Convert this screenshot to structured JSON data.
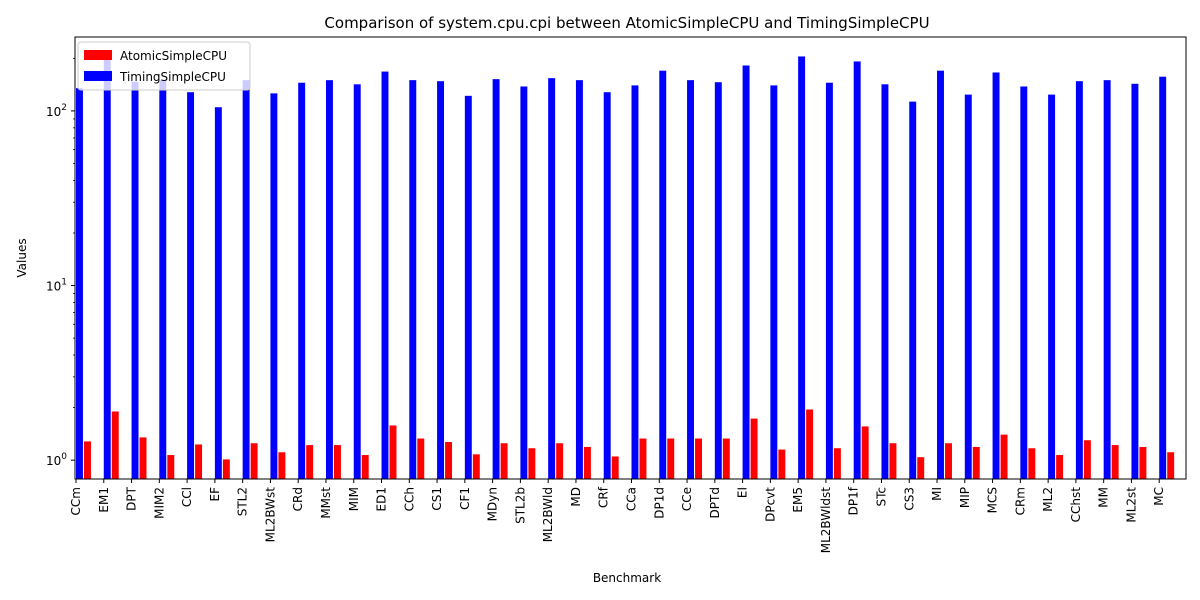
{
  "chart_data": {
    "type": "bar",
    "title": "Comparison of system.cpu.cpi between AtomicSimpleCPU and TimingSimpleCPU",
    "xlabel": "Benchmark",
    "ylabel": "Values",
    "yscale": "log",
    "ylim": [
      0.78,
      265
    ],
    "yticks": [
      {
        "value": 1,
        "base": "10",
        "exp": "0"
      },
      {
        "value": 10,
        "base": "10",
        "exp": "1"
      },
      {
        "value": 100,
        "base": "10",
        "exp": "2"
      }
    ],
    "legend_position": "top-left",
    "grid": false,
    "categories": [
      "CCm",
      "EM1",
      "DPT",
      "MIM2",
      "CCl",
      "EF",
      "STL2",
      "ML2BWst",
      "CRd",
      "MMst",
      "MIM",
      "ED1",
      "CCh",
      "CS1",
      "CF1",
      "MDyn",
      "STL2b",
      "ML2BWld",
      "MD",
      "CRf",
      "CCa",
      "DP1d",
      "CCe",
      "DPTd",
      "EI",
      "DPcvt",
      "EM5",
      "ML2BWldst",
      "DP1f",
      "STc",
      "CS3",
      "MI",
      "MIP",
      "MCS",
      "CRm",
      "ML2",
      "CChst",
      "MM",
      "ML2st",
      "MC"
    ],
    "series": [
      {
        "name": "AtomicSimpleCPU",
        "color": "#ff0000",
        "values": [
          1.28,
          1.9,
          1.35,
          1.07,
          1.23,
          1.01,
          1.25,
          1.11,
          1.22,
          1.22,
          1.07,
          1.58,
          1.33,
          1.27,
          1.08,
          1.25,
          1.17,
          1.25,
          1.19,
          1.05,
          1.33,
          1.33,
          1.33,
          1.33,
          1.73,
          1.15,
          1.95,
          1.17,
          1.56,
          1.25,
          1.04,
          1.25,
          1.19,
          1.4,
          1.17,
          1.07,
          1.3,
          1.22,
          1.19,
          1.11
        ]
      },
      {
        "name": "TimingSimpleCPU",
        "color": "#0000ff",
        "values": [
          135,
          198,
          147,
          150,
          128,
          105,
          150,
          126,
          145,
          150,
          142,
          168,
          150,
          148,
          122,
          152,
          138,
          154,
          150,
          128,
          140,
          170,
          150,
          146,
          182,
          140,
          205,
          145,
          192,
          142,
          113,
          170,
          124,
          166,
          138,
          124,
          148,
          150,
          143,
          157
        ]
      }
    ]
  }
}
